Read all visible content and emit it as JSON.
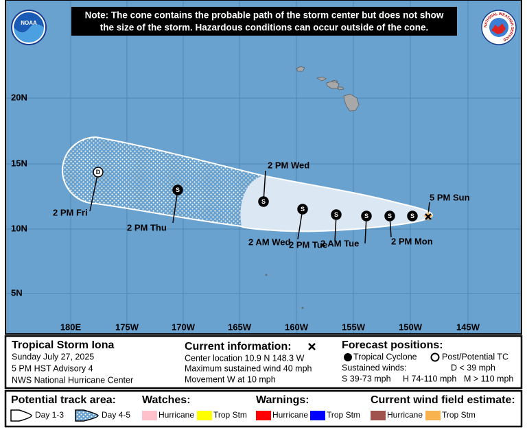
{
  "note": [
    "Note: The cone contains the probable path of the storm center but does not show",
    "the size of the storm. Hazardous conditions can occur outside of the cone."
  ],
  "logos": {
    "noaa": "NOAA",
    "nws": "NATIONAL WEATHER SERVICE"
  },
  "map": {
    "lat_labels": [
      "20N",
      "15N",
      "10N",
      "5N"
    ],
    "lon_labels": [
      "180E",
      "175W",
      "170W",
      "165W",
      "160W",
      "155W",
      "150W",
      "145W"
    ],
    "forecast_points": [
      {
        "symbol": "D",
        "time": "2 PM Fri"
      },
      {
        "symbol": "S",
        "time": "2 PM Thu"
      },
      {
        "symbol": "S",
        "time": "2 PM Wed"
      },
      {
        "symbol": "S",
        "time": "2 AM Wed"
      },
      {
        "symbol": "S",
        "time": "2 PM Tue"
      },
      {
        "symbol": "S",
        "time": "2 AM Tue"
      },
      {
        "symbol": "S",
        "time": "2 PM Mon"
      },
      {
        "symbol": "S"
      }
    ],
    "current_position_time": "5 PM Sun"
  },
  "info": {
    "storm": {
      "name": "Tropical Storm Iona",
      "lines": [
        "Sunday July 27, 2025",
        "5 PM HST Advisory 4",
        "NWS National Hurricane Center"
      ]
    },
    "current": {
      "title": "Current information:",
      "lines": [
        "Center location 10.9 N 148.3 W",
        "Maximum sustained wind 40 mph",
        "Movement W at 10 mph"
      ]
    },
    "forecast": {
      "title": "Forecast positions:",
      "tropical": "Tropical Cyclone",
      "post": "Post/Potential TC",
      "winds": "Sustained winds:",
      "d": "D < 39 mph",
      "s": "S 39-73 mph",
      "h": "H 74-110 mph",
      "m": "M > 110 mph"
    }
  },
  "legend": {
    "track": {
      "title": "Potential track area:",
      "day13": "Day 1-3",
      "day45": "Day 4-5"
    },
    "watches": {
      "title": "Watches:",
      "hurricane": "Hurricane",
      "trop": "Trop Stm"
    },
    "warnings": {
      "title": "Warnings:",
      "hurricane": "Hurricane",
      "trop": "Trop Stm"
    },
    "wind": {
      "title": "Current wind field estimate:",
      "hurricane": "Hurricane",
      "trop": "Trop Stm"
    }
  }
}
